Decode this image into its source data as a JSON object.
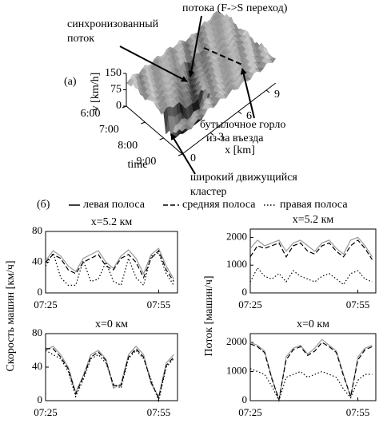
{
  "chart_data": [
    {
      "type": "surface3d",
      "panel_label": "(a)",
      "zlabel": "v [km/h]",
      "zlim": [
        0,
        150
      ],
      "zticks": [
        0,
        75,
        150
      ],
      "ylabel": "time",
      "ylim": [
        "6:00",
        "9:00"
      ],
      "yticks": [
        "6:00",
        "7:00",
        "8:00",
        "9:00"
      ],
      "xlabel": "x [km]",
      "xlim": [
        0,
        10
      ],
      "xticks": [
        0,
        3,
        6,
        9
      ],
      "annotations": [
        "потока (F->S переход)",
        "синхронизованный",
        "поток",
        "бутылочное горло",
        "из-за въезда",
        "широкий движущийся",
        "кластер"
      ]
    },
    {
      "type": "line",
      "panel_label": "(б)",
      "legend": true,
      "title": "x=5.2 км",
      "ylabel": "Скорость машин [км/ч]",
      "x": [
        "07:25",
        "07:27",
        "07:29",
        "07:31",
        "07:33",
        "07:35",
        "07:37",
        "07:39",
        "07:41",
        "07:43",
        "07:45",
        "07:47",
        "07:49",
        "07:51",
        "07:53",
        "07:55",
        "07:57",
        "07:59"
      ],
      "xlim": [
        "07:25",
        "08:00"
      ],
      "xticks": [
        "07:25",
        "07:55"
      ],
      "ylim": [
        0,
        80
      ],
      "yticks": [
        0,
        40,
        80
      ],
      "series": [
        {
          "name": "левая полоса",
          "color": "#9a9a9a",
          "dash": "solid",
          "values": [
            42,
            55,
            48,
            35,
            28,
            45,
            50,
            55,
            40,
            32,
            48,
            56,
            45,
            25,
            50,
            58,
            35,
            18
          ]
        },
        {
          "name": "средняя полоса",
          "color": "#000000",
          "dash": "dashed",
          "values": [
            40,
            50,
            45,
            30,
            25,
            40,
            45,
            50,
            35,
            30,
            45,
            50,
            40,
            20,
            45,
            55,
            30,
            15
          ]
        },
        {
          "name": "правая полоса",
          "color": "#000000",
          "dash": "dotted",
          "values": [
            35,
            52,
            20,
            10,
            10,
            42,
            15,
            18,
            40,
            15,
            10,
            45,
            20,
            10,
            48,
            52,
            25,
            10
          ]
        }
      ]
    },
    {
      "type": "line",
      "title": "x=5.2 км",
      "ylabel": "Поток [машин/ч]",
      "x": [
        "07:25",
        "07:27",
        "07:29",
        "07:31",
        "07:33",
        "07:35",
        "07:37",
        "07:39",
        "07:41",
        "07:43",
        "07:45",
        "07:47",
        "07:49",
        "07:51",
        "07:53",
        "07:55",
        "07:57",
        "07:59"
      ],
      "xlim": [
        "07:25",
        "08:00"
      ],
      "xticks": [
        "07:25",
        "07:55"
      ],
      "ylim": [
        0,
        2300
      ],
      "yticks": [
        0,
        1000,
        2000
      ],
      "series": [
        {
          "color": "#9a9a9a",
          "dash": "solid",
          "values": [
            1600,
            1900,
            1700,
            1800,
            1900,
            1500,
            1800,
            1900,
            1700,
            1500,
            1800,
            1900,
            1600,
            1400,
            1900,
            2000,
            1700,
            1300
          ]
        },
        {
          "color": "#000000",
          "dash": "dashed",
          "values": [
            1300,
            1700,
            1600,
            1700,
            1800,
            1300,
            1700,
            1800,
            1500,
            1400,
            1700,
            1800,
            1500,
            1300,
            1700,
            1900,
            1600,
            1200
          ]
        },
        {
          "color": "#000000",
          "dash": "dotted",
          "values": [
            400,
            900,
            600,
            500,
            700,
            400,
            800,
            600,
            500,
            400,
            600,
            700,
            500,
            300,
            700,
            800,
            500,
            400
          ]
        }
      ]
    },
    {
      "type": "line",
      "title": "x=0 км",
      "x": [
        "07:25",
        "07:27",
        "07:29",
        "07:31",
        "07:33",
        "07:35",
        "07:37",
        "07:39",
        "07:41",
        "07:43",
        "07:45",
        "07:47",
        "07:49",
        "07:51",
        "07:53",
        "07:55",
        "07:57",
        "07:59"
      ],
      "xlim": [
        "07:25",
        "08:00"
      ],
      "xticks": [
        "07:25",
        "07:55"
      ],
      "ylim": [
        0,
        80
      ],
      "yticks": [
        0,
        40,
        80
      ],
      "series": [
        {
          "color": "#9a9a9a",
          "dash": "solid",
          "values": [
            60,
            65,
            55,
            40,
            10,
            30,
            55,
            60,
            50,
            15,
            20,
            55,
            65,
            55,
            20,
            5,
            45,
            55
          ]
        },
        {
          "color": "#000000",
          "dash": "dashed",
          "values": [
            62,
            62,
            52,
            38,
            8,
            28,
            52,
            58,
            48,
            18,
            18,
            52,
            62,
            52,
            22,
            3,
            42,
            52
          ]
        },
        {
          "color": "#000000",
          "dash": "dotted",
          "values": [
            60,
            55,
            50,
            35,
            5,
            25,
            50,
            55,
            45,
            20,
            15,
            50,
            60,
            50,
            25,
            0,
            40,
            50
          ]
        }
      ]
    },
    {
      "type": "line",
      "title": "x=0 км",
      "x": [
        "07:25",
        "07:27",
        "07:29",
        "07:31",
        "07:33",
        "07:35",
        "07:37",
        "07:39",
        "07:41",
        "07:43",
        "07:45",
        "07:47",
        "07:49",
        "07:51",
        "07:53",
        "07:55",
        "07:57",
        "07:59"
      ],
      "xlim": [
        "07:25",
        "08:00"
      ],
      "xticks": [
        "07:25",
        "07:55"
      ],
      "ylim": [
        0,
        2300
      ],
      "yticks": [
        0,
        1000,
        2000
      ],
      "series": [
        {
          "color": "#9a9a9a",
          "dash": "solid",
          "values": [
            2000,
            1900,
            1700,
            800,
            0,
            1500,
            1800,
            1900,
            1600,
            1800,
            2100,
            1900,
            1700,
            900,
            100,
            1500,
            1800,
            1900
          ]
        },
        {
          "color": "#000000",
          "dash": "dashed",
          "values": [
            1950,
            1850,
            1650,
            750,
            50,
            1400,
            1750,
            1850,
            1550,
            1700,
            2000,
            1850,
            1650,
            850,
            150,
            1400,
            1750,
            1850
          ]
        },
        {
          "color": "#000000",
          "dash": "dotted",
          "values": [
            1100,
            1000,
            900,
            500,
            0,
            800,
            900,
            1000,
            800,
            900,
            1000,
            900,
            800,
            400,
            100,
            700,
            900,
            900
          ]
        }
      ]
    }
  ]
}
